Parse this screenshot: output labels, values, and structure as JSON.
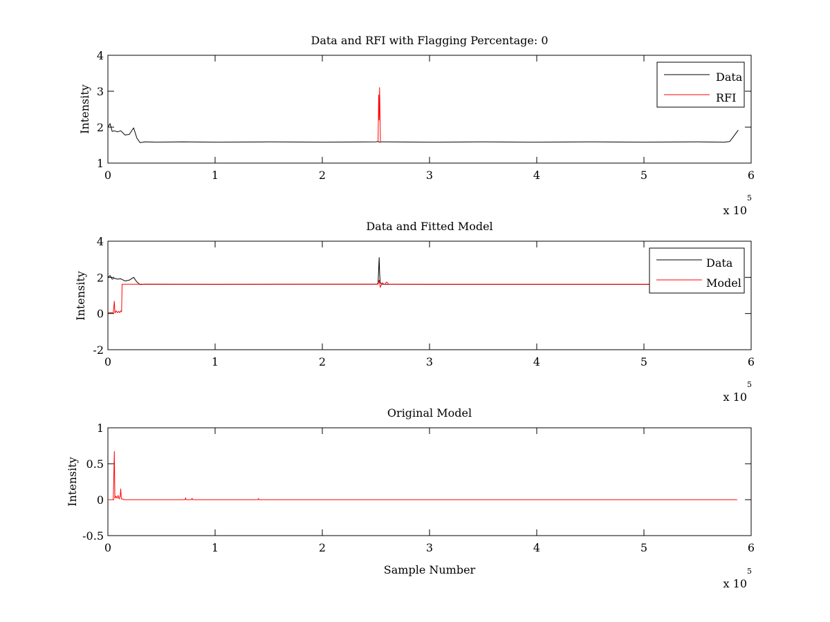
{
  "chart_data": [
    {
      "type": "line",
      "title": "Data and RFI with Flagging Percentage: 0",
      "xlabel": "",
      "ylabel": "Intensity",
      "xlim": [
        0,
        600000
      ],
      "ylim": [
        1,
        4
      ],
      "xticks": [
        0,
        1,
        2,
        3,
        4,
        5,
        6
      ],
      "yticks": [
        1,
        2,
        3,
        4
      ],
      "x_multiplier": "x 10",
      "x_exponent": "5",
      "legend_position": "top-right",
      "series": [
        {
          "name": "Data",
          "color": "#000000",
          "x": [
            0,
            2000,
            4000,
            6000,
            9000,
            12000,
            16000,
            20000,
            24000,
            27000,
            30000,
            35000,
            45000,
            70000,
            100000,
            150000,
            200000,
            250000,
            252000,
            253500,
            255000,
            258000,
            300000,
            350000,
            400000,
            450000,
            500000,
            550000,
            575000,
            580000,
            585000,
            588000
          ],
          "y": [
            2.0,
            2.1,
            1.88,
            1.9,
            1.87,
            1.9,
            1.78,
            1.8,
            1.98,
            1.7,
            1.57,
            1.59,
            1.58,
            1.59,
            1.58,
            1.59,
            1.58,
            1.59,
            1.6,
            1.58,
            1.59,
            1.59,
            1.58,
            1.59,
            1.58,
            1.59,
            1.58,
            1.59,
            1.58,
            1.6,
            1.8,
            1.92
          ]
        },
        {
          "name": "RFI",
          "color": "#ff0000",
          "x": [
            252000,
            252600,
            253000,
            253400,
            253800,
            254200,
            254800
          ],
          "y": [
            1.58,
            2.9,
            2.2,
            3.1,
            2.4,
            1.6,
            1.58
          ]
        }
      ]
    },
    {
      "type": "line",
      "title": "Data and Fitted Model",
      "xlabel": "",
      "ylabel": "Intensity",
      "xlim": [
        0,
        600000
      ],
      "ylim": [
        -2,
        4
      ],
      "xticks": [
        0,
        1,
        2,
        3,
        4,
        5,
        6
      ],
      "yticks": [
        -2,
        0,
        2,
        4
      ],
      "x_multiplier": "x 10",
      "x_exponent": "5",
      "legend_position": "top-right",
      "series": [
        {
          "name": "Data",
          "color": "#000000",
          "x": [
            0,
            2000,
            4000,
            6000,
            9000,
            12000,
            16000,
            20000,
            24000,
            27000,
            30000,
            35000,
            100000,
            200000,
            250000,
            252000,
            253000,
            253500,
            254000,
            256000,
            300000,
            400000,
            500000,
            550000
          ],
          "y": [
            2.0,
            2.1,
            1.9,
            1.95,
            1.9,
            1.92,
            1.8,
            1.85,
            2.0,
            1.75,
            1.6,
            1.62,
            1.61,
            1.62,
            1.62,
            1.65,
            3.1,
            2.2,
            1.7,
            1.62,
            1.61,
            1.61,
            1.61,
            1.61
          ]
        },
        {
          "name": "Model",
          "color": "#ff0000",
          "x": [
            500,
            5000,
            6000,
            6500,
            7000,
            7600,
            9000,
            10000,
            11000,
            12000,
            12800,
            13200,
            14000,
            15000,
            35000,
            100000,
            200000,
            250000,
            252000,
            253000,
            254000,
            256000,
            258000,
            260000,
            262000,
            265000,
            300000,
            400000,
            500000,
            505000
          ],
          "y": [
            0.05,
            0.05,
            0.68,
            0.05,
            0.05,
            0.15,
            0.05,
            0.12,
            0.05,
            0.15,
            0.1,
            1.62,
            1.62,
            1.62,
            1.62,
            1.62,
            1.62,
            1.62,
            1.62,
            1.85,
            1.45,
            1.7,
            1.6,
            1.75,
            1.62,
            1.62,
            1.62,
            1.62,
            1.62,
            1.62
          ]
        }
      ]
    },
    {
      "type": "line",
      "title": "Original Model",
      "xlabel": "Sample Number",
      "ylabel": "Intensity",
      "xlim": [
        0,
        600000
      ],
      "ylim": [
        -0.5,
        1
      ],
      "xticks": [
        0,
        1,
        2,
        3,
        4,
        5,
        6
      ],
      "yticks": [
        -0.5,
        0,
        0.5,
        1
      ],
      "x_multiplier": "x 10",
      "x_exponent": "5",
      "series": [
        {
          "color": "#ff0000",
          "x": [
            0,
            5000,
            5500,
            6000,
            6500,
            7500,
            8500,
            9500,
            10500,
            11500,
            12000,
            12500,
            13500,
            15000,
            50000,
            72000,
            72500,
            73000,
            78000,
            78500,
            79000,
            140000,
            140500,
            141000,
            300000,
            450000,
            587000
          ],
          "y": [
            0,
            0,
            0.3,
            0.67,
            0.02,
            0.05,
            0.02,
            0.06,
            0.01,
            0.05,
            0.15,
            0.01,
            0.01,
            0,
            0,
            0,
            0.025,
            0,
            0,
            0.02,
            0,
            0,
            0.015,
            0,
            0,
            0,
            0
          ]
        }
      ]
    }
  ]
}
